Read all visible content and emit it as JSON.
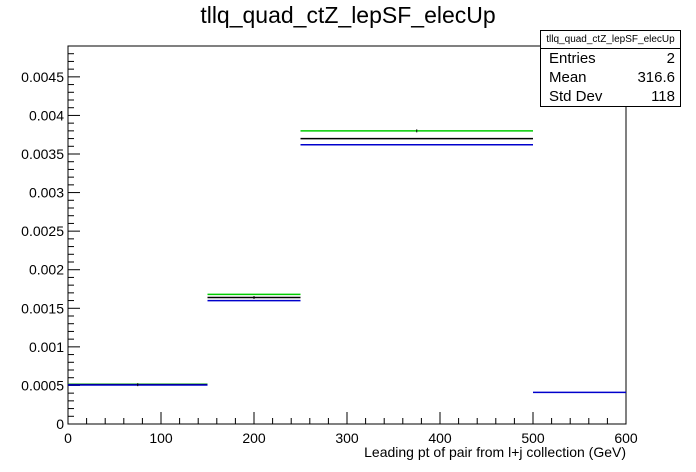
{
  "title": "tllq_quad_ctZ_lepSF_elecUp",
  "stats": {
    "name": "tllq_quad_ctZ_lepSF_elecUp",
    "rows": [
      {
        "label": "Entries",
        "value": "2"
      },
      {
        "label": "Mean",
        "value": "316.6"
      },
      {
        "label": "Std Dev",
        "value": "118"
      }
    ]
  },
  "chart_data": {
    "type": "histogram",
    "title": "tllq_quad_ctZ_lepSF_elecUp",
    "xlabel": "Leading pt of pair from l+j collection (GeV)",
    "ylabel": "",
    "xlim": [
      0,
      600
    ],
    "ylim": [
      0,
      0.0049
    ],
    "x_ticks": [
      0,
      100,
      200,
      300,
      400,
      500,
      600
    ],
    "x_tick_labels": [
      "0",
      "100",
      "200",
      "300",
      "400",
      "500",
      "600"
    ],
    "y_ticks": [
      0,
      0.0005,
      0.001,
      0.0015,
      0.002,
      0.0025,
      0.003,
      0.0035,
      0.004,
      0.0045
    ],
    "y_tick_labels": [
      "0",
      "0.0005",
      "0.001",
      "0.0015",
      "0.002",
      "0.0025",
      "0.003",
      "0.0035",
      "0.004",
      "0.0045"
    ],
    "bins": [
      [
        0,
        150
      ],
      [
        150,
        250
      ],
      [
        250,
        500
      ],
      [
        500,
        600
      ]
    ],
    "series": [
      {
        "color": "#00cc00",
        "values": [
          0.000515,
          0.00168,
          0.0038,
          null
        ]
      },
      {
        "color": "#000000",
        "values": [
          0.00051,
          0.00164,
          0.0037,
          null
        ]
      },
      {
        "color": "#0000cc",
        "values": [
          0.000505,
          0.0016,
          0.00362,
          0.00041
        ]
      }
    ],
    "errors": {
      "centers": [
        75,
        200,
        375
      ],
      "values": [
        0.00051,
        0.00164,
        0.0038
      ]
    }
  }
}
